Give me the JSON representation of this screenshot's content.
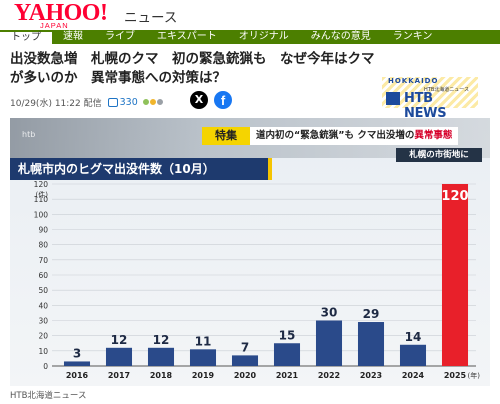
{
  "header": {
    "logo_text": "YAHOO!",
    "logo_sub": "JAPAN",
    "section_label": "ニュース"
  },
  "nav": {
    "items": [
      {
        "label": "トップ",
        "active": true
      },
      {
        "label": "速報",
        "active": false
      },
      {
        "label": "ライブ",
        "active": false
      },
      {
        "label": "エキスパート",
        "active": false
      },
      {
        "label": "オリジナル",
        "active": false
      },
      {
        "label": "みんなの意見",
        "active": false
      },
      {
        "label": "ランキン",
        "active": false
      }
    ]
  },
  "article": {
    "headline": "出没数急増　札幌のクマ　初の緊急銃猟も　なぜ今年はクマが多いのか　異常事態への対策は？",
    "timestamp": "10/29(水) 11:22 配信",
    "comment_count": "330",
    "share_x_icon": "x-logo-icon",
    "share_fb_icon": "facebook-logo-icon",
    "source": "HTB北海道ニュース"
  },
  "provider_logo": {
    "hokkaido": "HOKKAIDO",
    "small": "HTB北海道ニュース",
    "name": "HTB NEWS"
  },
  "photo": {
    "watermark": "htb",
    "badge": "特集",
    "caption_prefix": "道内初の“緊急銃猟”も",
    "caption_connector": "クマ出没増の",
    "caption_highlight": "異常事態",
    "location": "札幌の市街地に"
  },
  "chart_data": {
    "type": "bar",
    "title": "札幌市内のヒグマ出没件数（10月）",
    "ylabel": "(件)",
    "xlabel": "(年)",
    "categories": [
      "2016",
      "2017",
      "2018",
      "2019",
      "2020",
      "2021",
      "2022",
      "2023",
      "2024",
      "2025"
    ],
    "values": [
      3,
      12,
      12,
      11,
      7,
      15,
      30,
      29,
      14,
      120
    ],
    "yticks": [
      0,
      10,
      20,
      30,
      40,
      50,
      60,
      70,
      80,
      90,
      100,
      110,
      120
    ],
    "ylim": [
      0,
      120
    ],
    "grid": true,
    "colors": {
      "normal": "#2a4a8a",
      "highlight": "#e8202a"
    },
    "highlight_index": 9
  }
}
